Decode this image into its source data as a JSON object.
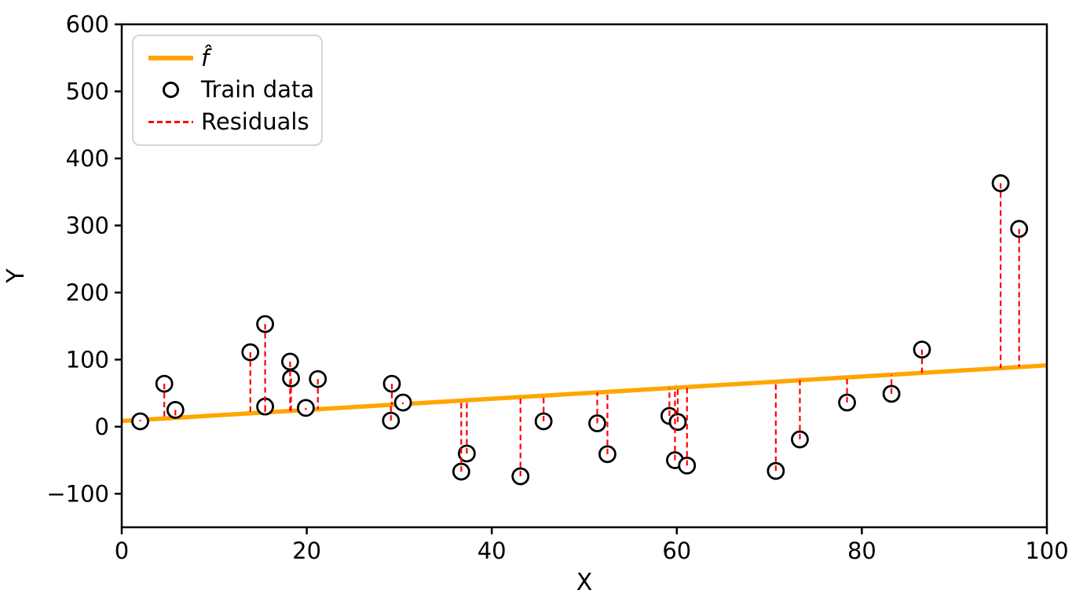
{
  "figure": {
    "background": "#ffffff"
  },
  "chart_data": {
    "type": "scatter",
    "title": "",
    "xlabel": "X",
    "ylabel": "Y",
    "xlim": [
      0,
      100
    ],
    "ylim": [
      -150,
      600
    ],
    "grid": false,
    "xticks": [
      0,
      20,
      40,
      60,
      80,
      100
    ],
    "xtick_labels": [
      "0",
      "20",
      "40",
      "60",
      "80",
      "100"
    ],
    "yticks": [
      -100,
      0,
      100,
      200,
      300,
      400,
      500,
      600
    ],
    "ytick_labels": [
      "−100",
      "0",
      "100",
      "200",
      "300",
      "400",
      "500",
      "600"
    ],
    "legend_position": "upper left",
    "legend": [
      {
        "label": "f̂",
        "kind": "solid-line",
        "color": "#FFA500"
      },
      {
        "label": "Train data",
        "kind": "open-circle-marker",
        "color": "#000000"
      },
      {
        "label": "Residuals",
        "kind": "dashed-line",
        "color": "#FF0000"
      }
    ],
    "fit_line": {
      "name": "f̂",
      "intercept": 8.4,
      "slope": 0.83,
      "color": "#FFA500"
    },
    "marker": {
      "shape": "open-circle",
      "edge_color": "#000000",
      "face_color": "#ffffff"
    },
    "residuals": {
      "color": "#FF0000",
      "style": "dashed",
      "note": "vertical segment from each train point to fit line"
    },
    "train_points": [
      [
        2.0,
        8
      ],
      [
        4.6,
        64
      ],
      [
        5.8,
        25
      ],
      [
        13.9,
        111
      ],
      [
        15.5,
        153
      ],
      [
        15.5,
        30
      ],
      [
        18.2,
        97
      ],
      [
        18.3,
        72
      ],
      [
        19.9,
        28
      ],
      [
        21.2,
        71
      ],
      [
        29.1,
        9
      ],
      [
        29.2,
        64
      ],
      [
        30.4,
        36
      ],
      [
        36.7,
        -67
      ],
      [
        37.3,
        -40
      ],
      [
        43.1,
        -74
      ],
      [
        45.6,
        8
      ],
      [
        51.4,
        5
      ],
      [
        52.5,
        -41
      ],
      [
        59.2,
        16
      ],
      [
        59.8,
        -50
      ],
      [
        60.1,
        7
      ],
      [
        61.1,
        -58
      ],
      [
        70.7,
        -66
      ],
      [
        73.3,
        -19
      ],
      [
        78.4,
        36
      ],
      [
        83.2,
        49
      ],
      [
        86.5,
        115
      ],
      [
        95.0,
        363
      ],
      [
        97.0,
        295
      ]
    ]
  }
}
